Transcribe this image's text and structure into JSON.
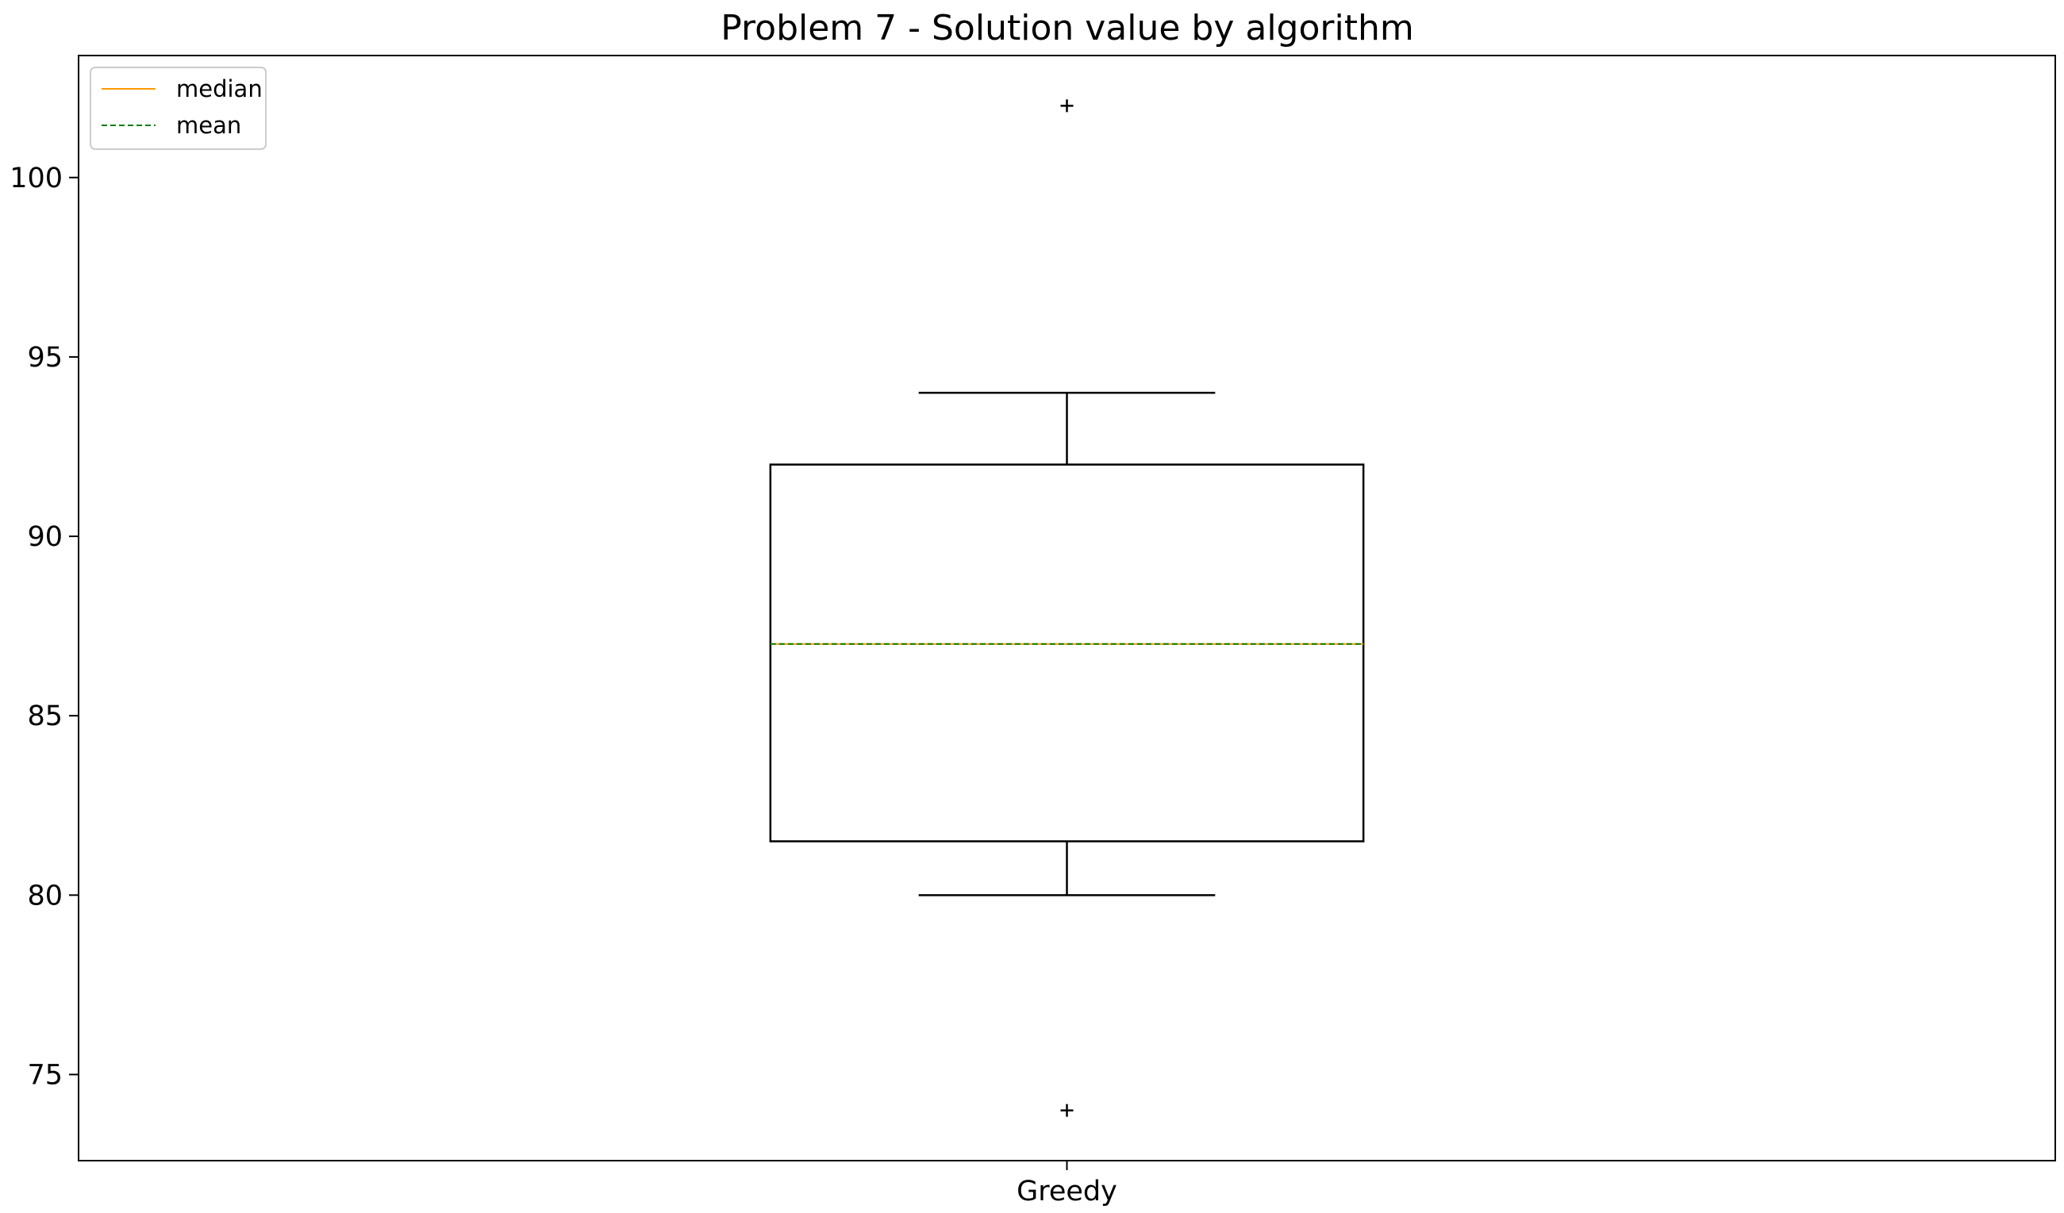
{
  "chart_data": {
    "type": "box",
    "title": "Problem 7 - Solution value by algorithm",
    "xlabel": "",
    "ylabel": "",
    "categories": [
      "Greedy"
    ],
    "boxes": [
      {
        "category": "Greedy",
        "whisker_low": 80,
        "q1": 81.5,
        "median": 87,
        "mean": 87,
        "q3": 92,
        "whisker_high": 94,
        "outliers": [
          102,
          74
        ]
      }
    ],
    "ylim": [
      72.6,
      103.4
    ],
    "yticks": [
      75,
      80,
      85,
      90,
      95,
      100
    ],
    "grid": false,
    "legend": {
      "position": "top-left",
      "entries": [
        {
          "label": "median",
          "color": "#ff9900",
          "style": "solid"
        },
        {
          "label": "mean",
          "color": "#008000",
          "style": "dashed"
        }
      ]
    },
    "colors": {
      "median": "#ff9900",
      "mean": "#008000",
      "box": "#000000"
    }
  }
}
